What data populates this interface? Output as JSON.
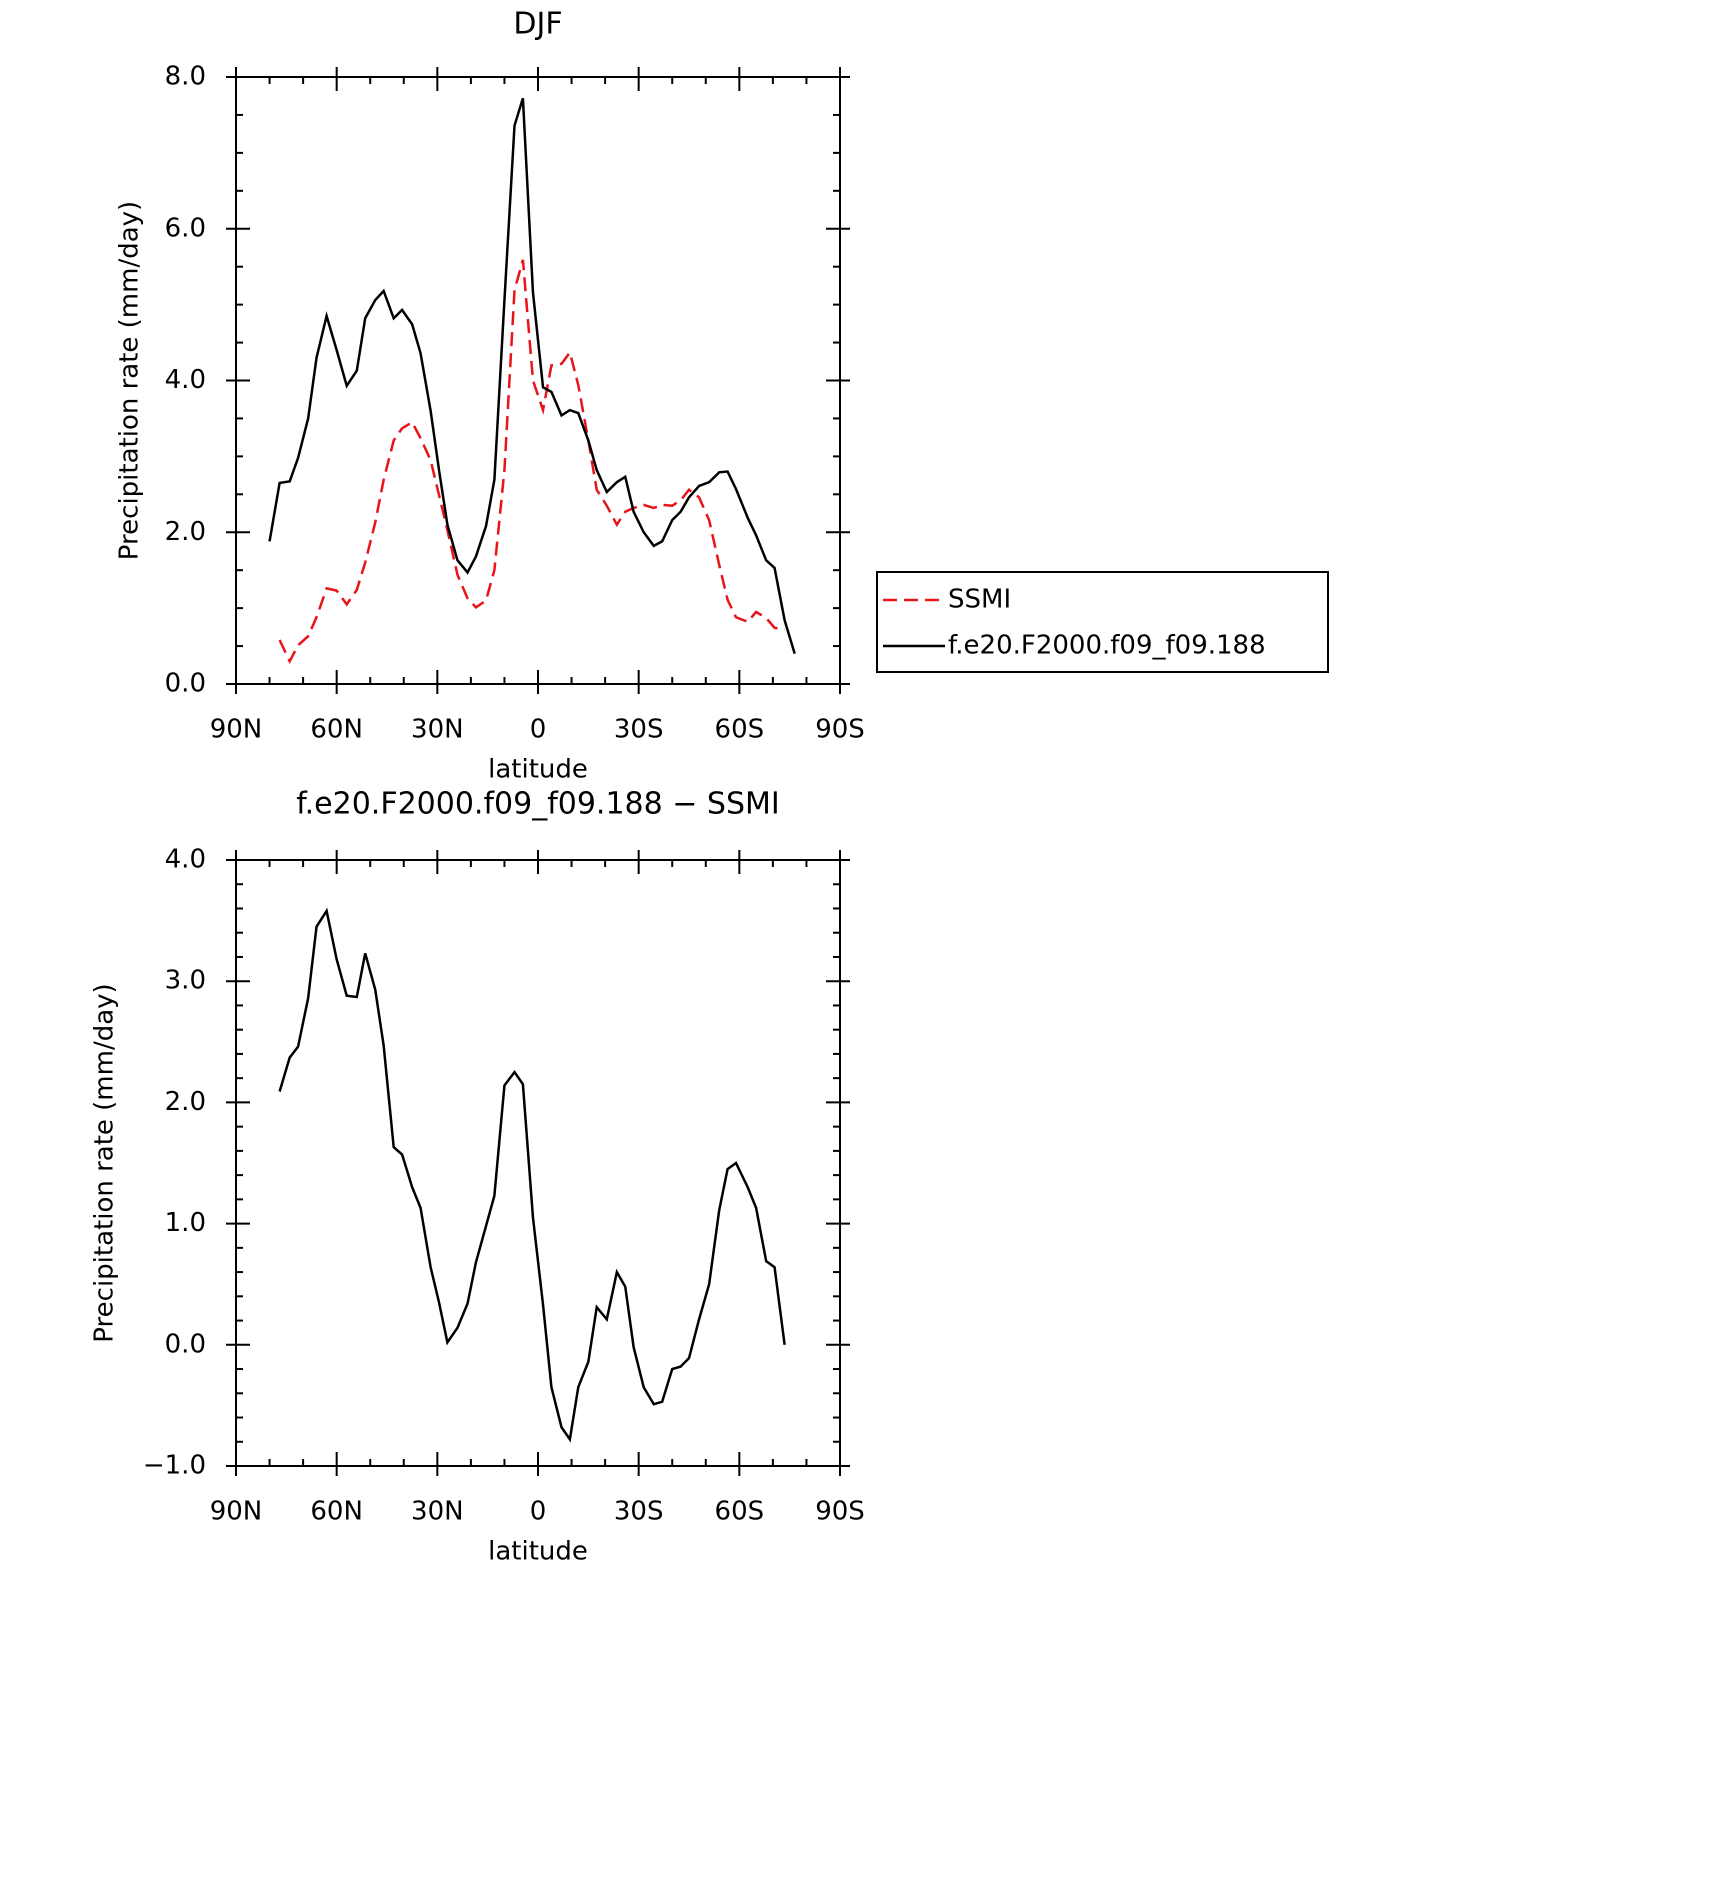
{
  "chart_data": [
    {
      "type": "line",
      "title": "DJF",
      "xlabel": "latitude",
      "ylabel": "Precipitation rate (mm/day)",
      "xlim": [
        90,
        -90
      ],
      "xticks": [
        {
          "value": 90,
          "label": "90N"
        },
        {
          "value": 60,
          "label": "60N"
        },
        {
          "value": 30,
          "label": "30N"
        },
        0,
        {
          "value": -30,
          "label": "30S"
        },
        {
          "value": -60,
          "label": "60S"
        },
        {
          "value": -90,
          "label": "90S"
        }
      ],
      "xminorticks": [
        80,
        70,
        50,
        40,
        20,
        10,
        -10,
        -20,
        -40,
        -50,
        -70,
        -80
      ],
      "ylim": [
        0,
        8
      ],
      "yticks": [
        {
          "value": 0,
          "label": "0.0"
        },
        {
          "value": 2,
          "label": "2.0"
        },
        {
          "value": 4,
          "label": "4.0"
        },
        {
          "value": 6,
          "label": "6.0"
        },
        {
          "value": 8,
          "label": "8.0"
        }
      ],
      "yminorticks": [
        0.5,
        1,
        1.5,
        2.5,
        3,
        3.5,
        4.5,
        5,
        5.5,
        6.5,
        7,
        7.5
      ],
      "legend": "right",
      "x": [
        80,
        77,
        74,
        71.5,
        68.5,
        66,
        63,
        60,
        57,
        54,
        51.5,
        48.5,
        46,
        43,
        40.5,
        37.5,
        35,
        32,
        29.5,
        27,
        24,
        21,
        18.5,
        15.5,
        13,
        10,
        7,
        4.5,
        1.5,
        -1.5,
        -4,
        -7,
        -9.5,
        -12,
        -15,
        -17.5,
        -20.5,
        -23.5,
        -26,
        -28.5,
        -31.5,
        -34.5,
        -37,
        -40,
        -42.5,
        -45,
        -48,
        -51,
        -54,
        -56.5,
        -59,
        -62.5,
        -65,
        -68,
        -70.5,
        -73.5,
        -76.5
      ],
      "series": [
        {
          "name": "SSMI",
          "color": "#e8141a",
          "dash": true,
          "values": [
            null,
            0.58,
            0.3,
            0.51,
            0.63,
            0.88,
            1.26,
            1.23,
            1.05,
            1.24,
            1.6,
            2.13,
            2.69,
            3.21,
            3.37,
            3.45,
            3.24,
            2.95,
            2.49,
            2.03,
            1.44,
            1.13,
            1.01,
            1.1,
            1.5,
            2.82,
            5.19,
            5.59,
            4.0,
            3.61,
            4.2,
            4.22,
            4.37,
            3.94,
            3.21,
            2.56,
            2.35,
            2.1,
            2.27,
            2.32,
            2.36,
            2.32,
            2.36,
            2.35,
            2.42,
            2.56,
            2.46,
            2.16,
            1.57,
            1.11,
            0.88,
            0.82,
            0.95,
            0.87,
            0.74,
            0.72,
            null
          ]
        },
        {
          "name": "f.e20.F2000.f09_f09.188",
          "color": "#000000",
          "dash": false,
          "values": [
            1.88,
            2.65,
            2.67,
            2.98,
            3.5,
            4.3,
            4.85,
            4.4,
            3.93,
            4.13,
            4.82,
            5.06,
            5.18,
            4.82,
            4.93,
            4.74,
            4.36,
            3.6,
            2.82,
            2.1,
            1.63,
            1.47,
            1.68,
            2.08,
            2.69,
            5.06,
            7.36,
            7.72,
            5.16,
            3.91,
            3.85,
            3.54,
            3.61,
            3.57,
            3.21,
            2.82,
            2.53,
            2.66,
            2.73,
            2.27,
            2.0,
            1.82,
            1.88,
            2.16,
            2.27,
            2.46,
            2.61,
            2.66,
            2.79,
            2.8,
            2.57,
            2.19,
            1.96,
            1.63,
            1.53,
            0.84,
            0.4
          ]
        }
      ]
    },
    {
      "type": "line",
      "title": "f.e20.F2000.f09_f09.188 − SSMI",
      "xlabel": "latitude",
      "ylabel": "Precipitation rate (mm/day)",
      "xlim": [
        90,
        -90
      ],
      "xticks": [
        {
          "value": 90,
          "label": "90N"
        },
        {
          "value": 60,
          "label": "60N"
        },
        {
          "value": 30,
          "label": "30N"
        },
        0,
        {
          "value": -30,
          "label": "30S"
        },
        {
          "value": -60,
          "label": "60S"
        },
        {
          "value": -90,
          "label": "90S"
        }
      ],
      "xminorticks": [
        80,
        70,
        50,
        40,
        20,
        10,
        -10,
        -20,
        -40,
        -50,
        -70,
        -80
      ],
      "ylim": [
        -1,
        4
      ],
      "yticks": [
        {
          "value": -1,
          "label": "−1.0"
        },
        {
          "value": 0,
          "label": "0.0"
        },
        {
          "value": 1,
          "label": "1.0"
        },
        {
          "value": 2,
          "label": "2.0"
        },
        {
          "value": 3,
          "label": "3.0"
        },
        {
          "value": 4,
          "label": "4.0"
        }
      ],
      "yminorticks": [
        -0.8,
        -0.6,
        -0.4,
        -0.2,
        0.2,
        0.4,
        0.6,
        0.8,
        1.2,
        1.4,
        1.6,
        1.8,
        2.2,
        2.4,
        2.6,
        2.8,
        3.2,
        3.4,
        3.6,
        3.8
      ],
      "x": [
        77,
        74,
        71.5,
        68.5,
        66,
        63,
        60,
        57,
        54,
        51.5,
        48.5,
        46,
        43,
        40.5,
        37.5,
        35,
        32,
        29.5,
        27,
        24,
        21,
        18.5,
        15.5,
        13,
        10,
        7,
        4.5,
        1.5,
        -1.5,
        -4,
        -7,
        -9.5,
        -12,
        -15,
        -17.5,
        -20.5,
        -23.5,
        -26,
        -28.5,
        -31.5,
        -34.5,
        -37,
        -40,
        -42.5,
        -45,
        -48,
        -51,
        -54,
        -56.5,
        -59,
        -62.5,
        -65,
        -68,
        -70.5,
        -73.5
      ],
      "series": [
        {
          "color": "#000000",
          "dash": false,
          "values": [
            2.09,
            2.37,
            2.46,
            2.86,
            3.45,
            3.58,
            3.18,
            2.88,
            2.87,
            3.23,
            2.93,
            2.47,
            1.63,
            1.57,
            1.3,
            1.13,
            0.64,
            0.35,
            0.02,
            0.14,
            0.34,
            0.68,
            0.98,
            1.23,
            2.14,
            2.25,
            2.15,
            1.05,
            0.33,
            -0.35,
            -0.68,
            -0.78,
            -0.35,
            -0.14,
            0.31,
            0.21,
            0.6,
            0.48,
            -0.02,
            -0.35,
            -0.49,
            -0.47,
            -0.2,
            -0.18,
            -0.11,
            0.21,
            0.5,
            1.11,
            1.45,
            1.5,
            1.3,
            1.13,
            0.69,
            0.64,
            0.0
          ]
        }
      ]
    }
  ]
}
